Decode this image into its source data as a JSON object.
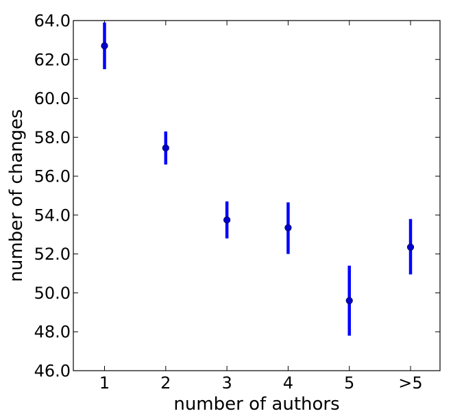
{
  "chart_data": {
    "type": "scatter",
    "title": "",
    "xlabel": "number of authors",
    "ylabel": "number of changes",
    "categories": [
      "1",
      "2",
      "3",
      "4",
      "5",
      ">5"
    ],
    "series": [
      {
        "values": [
          62.7,
          57.45,
          53.75,
          53.35,
          49.6,
          52.35
        ],
        "error_low": [
          61.5,
          56.6,
          52.8,
          52.0,
          47.8,
          50.95
        ],
        "error_high": [
          63.9,
          58.3,
          54.7,
          54.65,
          51.4,
          53.8
        ]
      }
    ],
    "ylim": [
      46.0,
      64.0
    ],
    "yticks": [
      46.0,
      48.0,
      50.0,
      52.0,
      54.0,
      56.0,
      58.0,
      60.0,
      62.0,
      64.0
    ],
    "ytick_labels": [
      "46.0",
      "48.0",
      "50.0",
      "52.0",
      "54.0",
      "56.0",
      "58.0",
      "60.0",
      "62.0",
      "64.0"
    ],
    "grid": false,
    "legend": "none",
    "colors": {
      "marker": "#0000cc",
      "errorbar": "#0000ff"
    }
  }
}
